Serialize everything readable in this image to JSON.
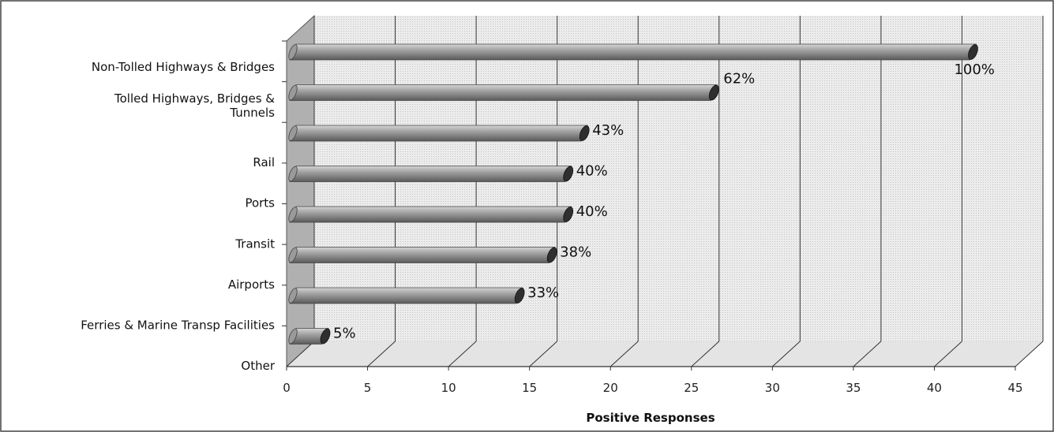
{
  "chart_data": {
    "type": "bar",
    "orientation": "horizontal",
    "style": "3d-cylinder",
    "title": "",
    "xlabel": "Positive Responses",
    "ylabel": "",
    "xlim": [
      0,
      45
    ],
    "x_ticks": [
      "0",
      "5",
      "10",
      "15",
      "20",
      "25",
      "30",
      "35",
      "40",
      "45"
    ],
    "grid": true,
    "legend": "none",
    "categories": [
      "Non-Tolled Highways & Bridges",
      "Tolled Highways, Bridges & Tunnels",
      "Rail",
      "Ports",
      "Transit",
      "Airports",
      "Ferries & Marine Transp Facilities",
      "Other"
    ],
    "values": [
      42,
      26,
      18,
      17,
      17,
      16,
      14,
      2
    ],
    "data_labels": [
      "100%",
      "62%",
      "43%",
      "40%",
      "40%",
      "38%",
      "33%",
      "5%"
    ],
    "colors": {
      "bar": "#808080",
      "bar_highlight": "#c8c8c8",
      "bar_end": "#2f2f2f",
      "plot_background": "#ececec",
      "left_wall": "#b0b0b0",
      "grid": "#333333"
    }
  }
}
